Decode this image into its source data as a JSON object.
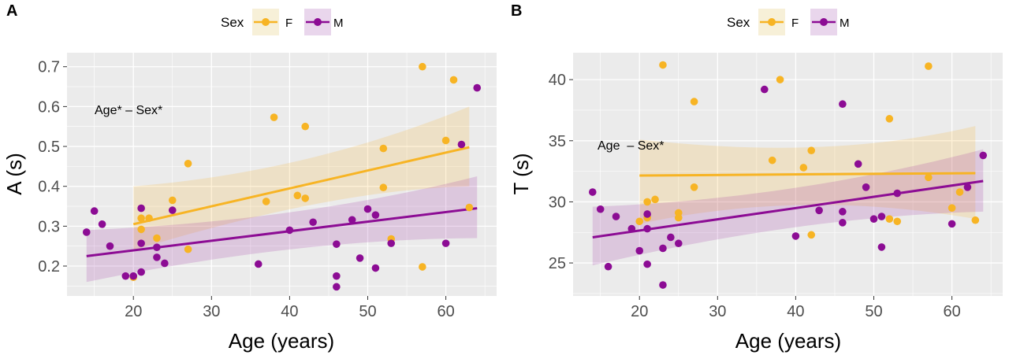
{
  "colors": {
    "F": "#F7B424",
    "M": "#8C0C94",
    "panel_bg": "#EBEBEB",
    "grid": "#FFFFFF",
    "tick_text": "#4D4D4D"
  },
  "chart_data": [
    {
      "type": "scatter",
      "panel_label": "A",
      "legend": {
        "title": "Sex",
        "entries": [
          "F",
          "M"
        ],
        "placement": "top"
      },
      "annotation": "Age* – Sex*",
      "xlabel": "Age (years)",
      "ylabel": "A (s)",
      "xlim": [
        11.5,
        66.5
      ],
      "ylim": [
        0.125,
        0.735
      ],
      "x_ticks": [
        "20",
        "30",
        "40",
        "50",
        "60"
      ],
      "y_ticks": [
        "0.2",
        "0.3",
        "0.4",
        "0.5",
        "0.6",
        "0.7"
      ],
      "grid": true,
      "series": [
        {
          "name": "F",
          "points": [
            [
              20,
              0.172
            ],
            [
              21,
              0.292
            ],
            [
              21,
              0.32
            ],
            [
              22,
              0.32
            ],
            [
              23,
              0.27
            ],
            [
              25,
              0.365
            ],
            [
              27,
              0.457
            ],
            [
              27,
              0.242
            ],
            [
              37,
              0.362
            ],
            [
              38,
              0.573
            ],
            [
              41,
              0.377
            ],
            [
              42,
              0.55
            ],
            [
              42,
              0.37
            ],
            [
              52,
              0.495
            ],
            [
              52,
              0.397
            ],
            [
              53,
              0.268
            ],
            [
              57,
              0.7
            ],
            [
              57,
              0.198
            ],
            [
              60,
              0.515
            ],
            [
              61,
              0.667
            ],
            [
              63,
              0.347
            ]
          ],
          "fit": {
            "x": [
              20,
              63
            ],
            "y": [
              0.305,
              0.498
            ]
          },
          "ci": {
            "x": [
              20,
              63
            ],
            "lower": [
              0.24,
              0.4
            ],
            "upper": [
              0.4,
              0.6
            ]
          }
        },
        {
          "name": "M",
          "points": [
            [
              14,
              0.285
            ],
            [
              15,
              0.338
            ],
            [
              16,
              0.305
            ],
            [
              17,
              0.25
            ],
            [
              19,
              0.175
            ],
            [
              20,
              0.175
            ],
            [
              21,
              0.345
            ],
            [
              21,
              0.257
            ],
            [
              21,
              0.185
            ],
            [
              23,
              0.222
            ],
            [
              23,
              0.247
            ],
            [
              24,
              0.207
            ],
            [
              25,
              0.34
            ],
            [
              36,
              0.205
            ],
            [
              40,
              0.29
            ],
            [
              43,
              0.31
            ],
            [
              46,
              0.255
            ],
            [
              46,
              0.175
            ],
            [
              46,
              0.148
            ],
            [
              48,
              0.316
            ],
            [
              49,
              0.22
            ],
            [
              50,
              0.343
            ],
            [
              51,
              0.328
            ],
            [
              51,
              0.195
            ],
            [
              53,
              0.257
            ],
            [
              60,
              0.257
            ],
            [
              62,
              0.505
            ],
            [
              64,
              0.647
            ]
          ],
          "fit": {
            "x": [
              14,
              64
            ],
            "y": [
              0.225,
              0.345
            ]
          },
          "ci": {
            "x": [
              14,
              64
            ],
            "lower": [
              0.16,
              0.27
            ],
            "upper": [
              0.29,
              0.425
            ]
          }
        }
      ]
    },
    {
      "type": "scatter",
      "panel_label": "B",
      "legend": {
        "title": "Sex",
        "entries": [
          "F",
          "M"
        ],
        "placement": "top"
      },
      "annotation": "Age  – Sex*",
      "xlabel": "Age (years)",
      "ylabel": "T (s)",
      "xlim": [
        11.5,
        66.5
      ],
      "ylim": [
        22.3,
        42.2
      ],
      "x_ticks": [
        "20",
        "30",
        "40",
        "50",
        "60"
      ],
      "y_ticks": [
        "25",
        "30",
        "35",
        "40"
      ],
      "grid": true,
      "series": [
        {
          "name": "F",
          "points": [
            [
              20,
              28.4
            ],
            [
              21,
              30
            ],
            [
              21,
              28.7
            ],
            [
              22,
              30.2
            ],
            [
              23,
              41.2
            ],
            [
              25,
              29.1
            ],
            [
              25,
              28.7
            ],
            [
              27,
              38.2
            ],
            [
              27,
              31.2
            ],
            [
              37,
              33.4
            ],
            [
              38,
              40
            ],
            [
              41,
              32.8
            ],
            [
              42,
              34.2
            ],
            [
              42,
              27.3
            ],
            [
              52,
              36.8
            ],
            [
              52,
              28.6
            ],
            [
              53,
              28.4
            ],
            [
              57,
              41.1
            ],
            [
              57,
              32
            ],
            [
              60,
              29.5
            ],
            [
              61,
              30.8
            ],
            [
              63,
              28.5
            ]
          ],
          "fit": {
            "x": [
              20,
              63
            ],
            "y": [
              32.15,
              32.35
            ]
          },
          "ci": {
            "x": [
              20,
              63
            ],
            "lower": [
              28.2,
              28.6
            ],
            "upper": [
              35.1,
              36.2
            ]
          }
        },
        {
          "name": "M",
          "points": [
            [
              14,
              30.8
            ],
            [
              15,
              29.4
            ],
            [
              16,
              24.7
            ],
            [
              17,
              28.8
            ],
            [
              19,
              27.8
            ],
            [
              20,
              26
            ],
            [
              21,
              27.8
            ],
            [
              21,
              24.9
            ],
            [
              21,
              29
            ],
            [
              23,
              26.2
            ],
            [
              23,
              23.2
            ],
            [
              24,
              27.1
            ],
            [
              25,
              26.6
            ],
            [
              36,
              39.2
            ],
            [
              40,
              27.2
            ],
            [
              43,
              29.3
            ],
            [
              46,
              38
            ],
            [
              46,
              29.2
            ],
            [
              46,
              28.3
            ],
            [
              48,
              33.1
            ],
            [
              49,
              31.2
            ],
            [
              50,
              28.6
            ],
            [
              51,
              28.8
            ],
            [
              51,
              26.3
            ],
            [
              53,
              30.7
            ],
            [
              60,
              28.2
            ],
            [
              62,
              31.2
            ],
            [
              64,
              33.8
            ]
          ],
          "fit": {
            "x": [
              14,
              64
            ],
            "y": [
              27.1,
              31.7
            ]
          },
          "ci": {
            "x": [
              14,
              64
            ],
            "lower": [
              24.8,
              29.2
            ],
            "upper": [
              29.6,
              34.3
            ]
          }
        }
      ]
    }
  ]
}
